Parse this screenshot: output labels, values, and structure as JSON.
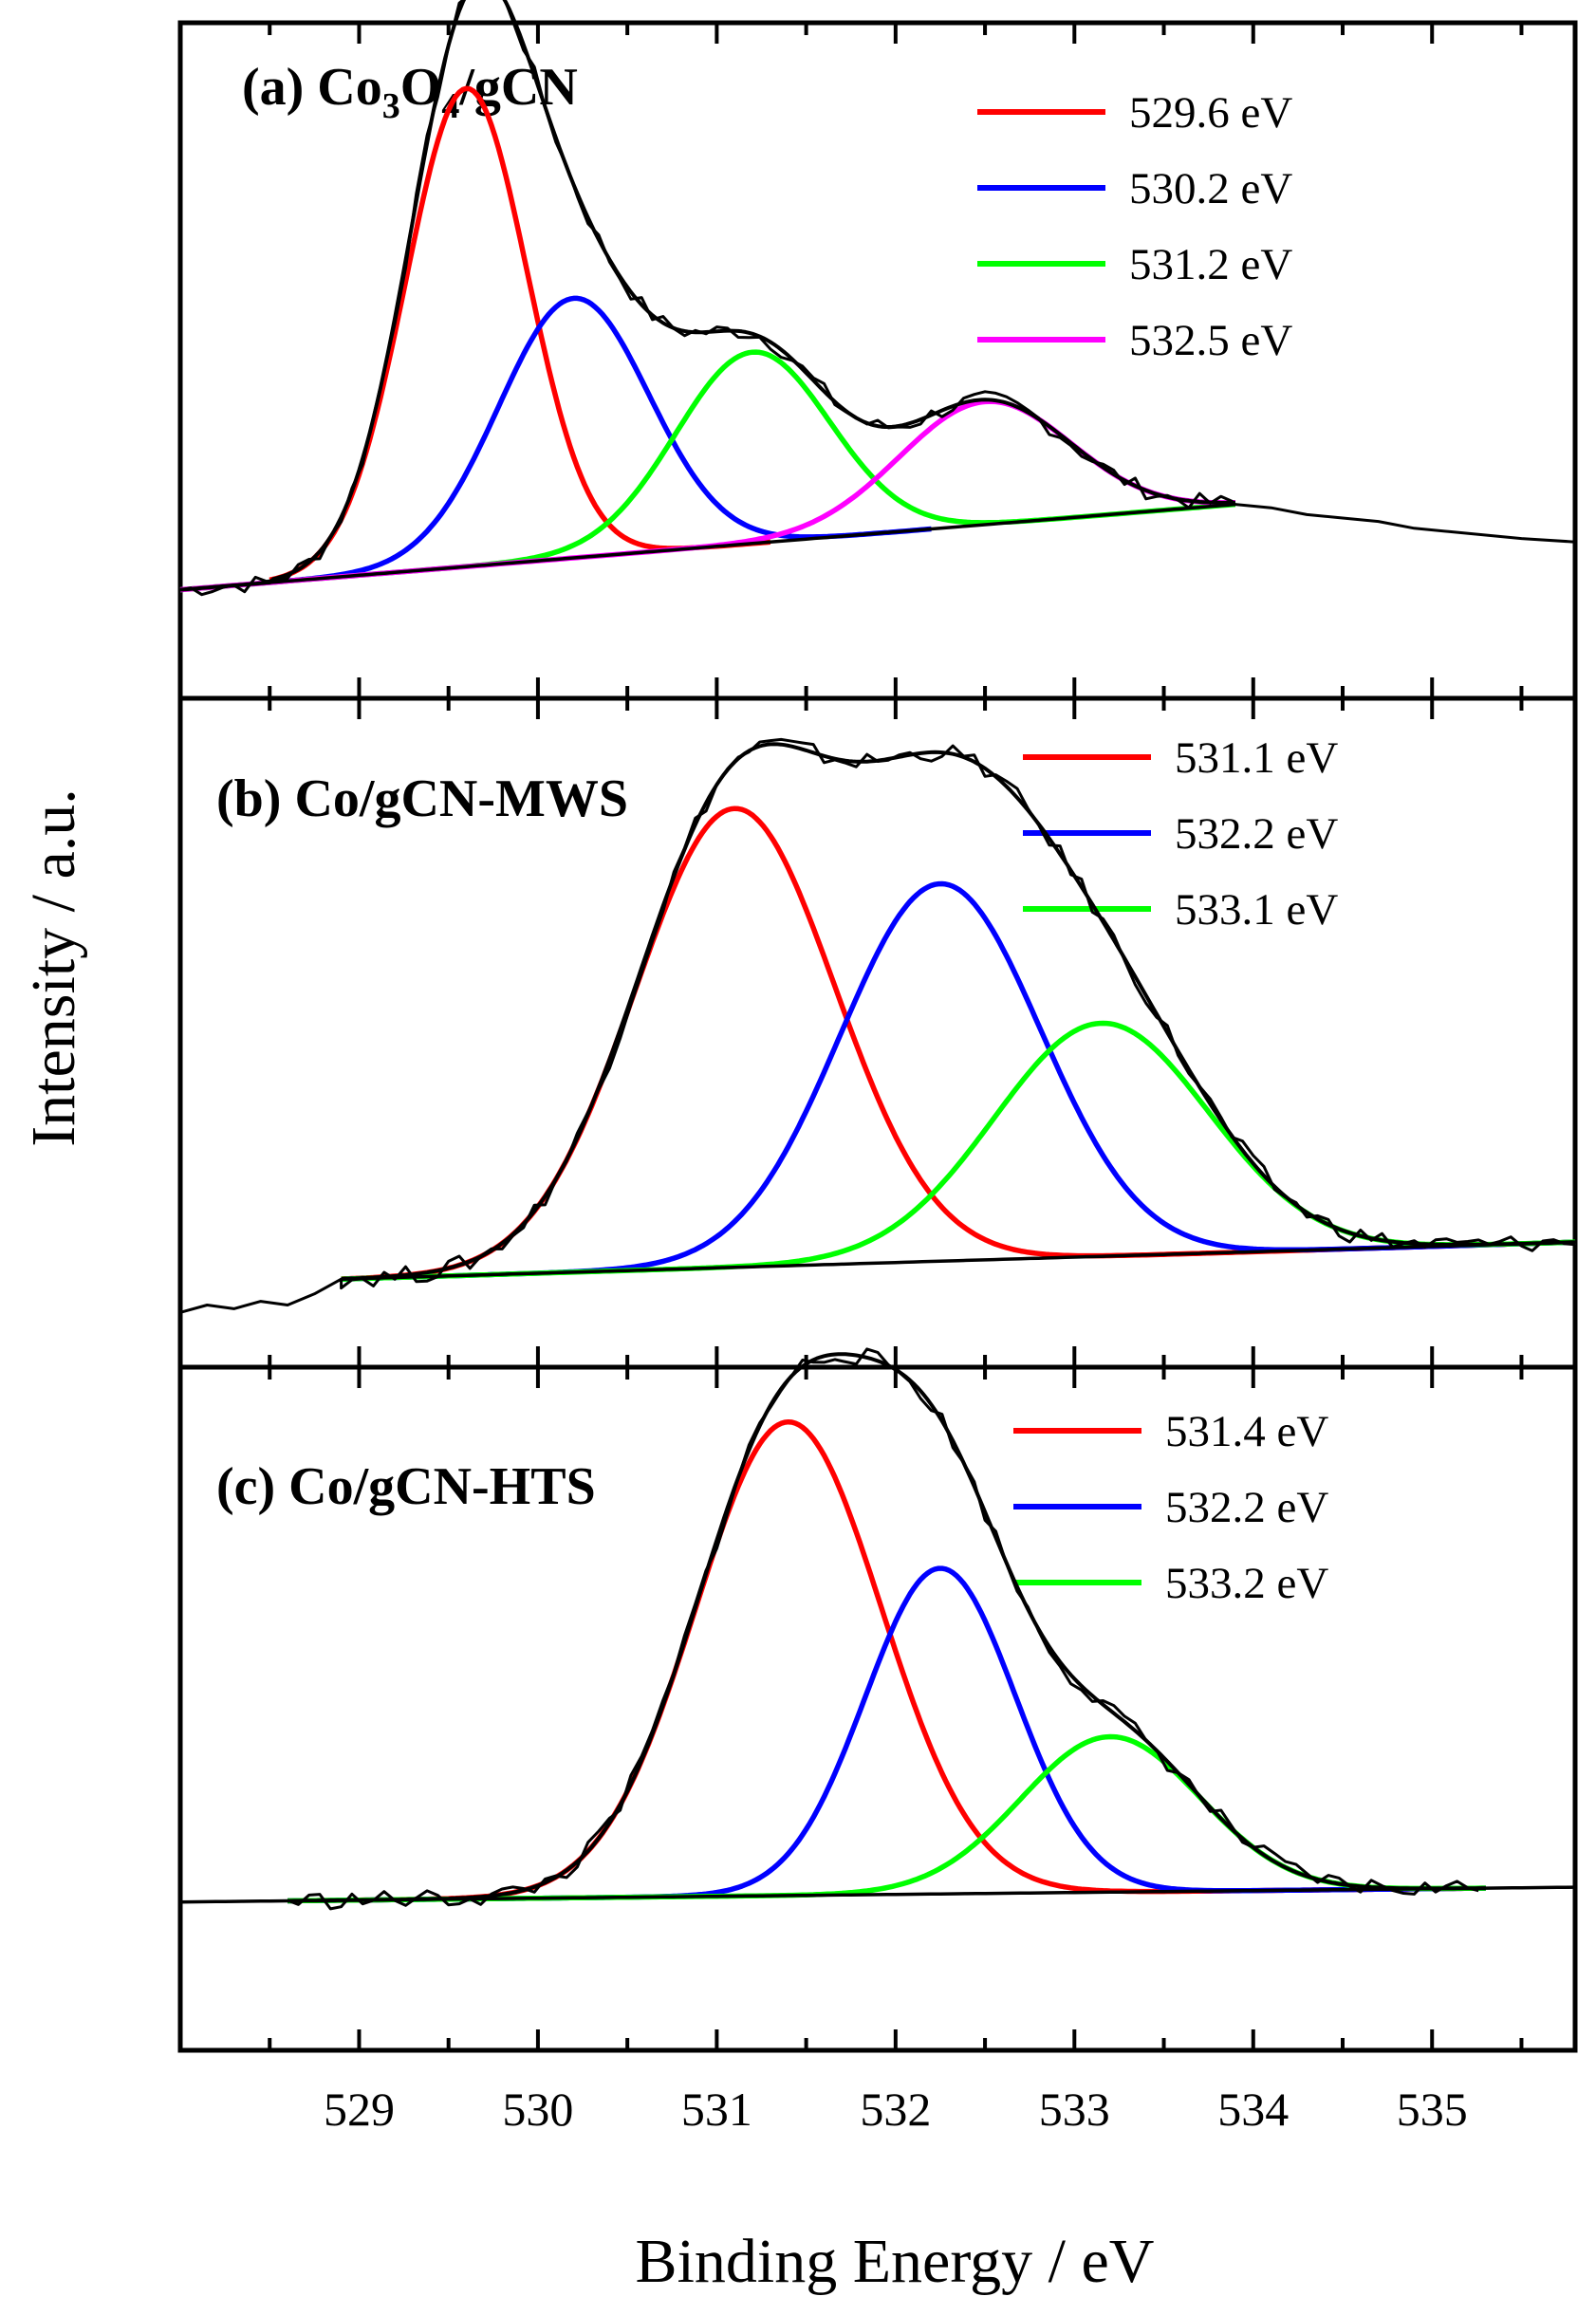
{
  "figure": {
    "ylabel": "Intensity / a.u.",
    "xlabel": "Binding Energy / eV",
    "xlim": [
      528,
      535.8
    ],
    "xticks": [
      "529",
      "530",
      "531",
      "532",
      "533",
      "534",
      "535"
    ],
    "xtick_values": [
      529,
      530,
      531,
      532,
      533,
      534,
      535
    ],
    "grid": false
  },
  "chart_data": [
    {
      "type": "line",
      "id": "a",
      "title_parts": {
        "prefix": "(a) Co",
        "sub1": "3",
        "mid": "O",
        "sub2": "4",
        "suffix": "/gCN"
      },
      "xlim": [
        528,
        535.8
      ],
      "ylim": [
        0,
        1
      ],
      "xlabel": "Binding Energy / eV",
      "ylabel": "Intensity / a.u.",
      "legend_position": "top-right",
      "background": {
        "range": [
          528.0,
          533.9
        ],
        "start": 0.095,
        "end": 0.22
      },
      "experimental_tail": [
        [
          533.9,
          0.22
        ],
        [
          534.1,
          0.215
        ],
        [
          534.3,
          0.205
        ],
        [
          534.5,
          0.2
        ],
        [
          534.7,
          0.195
        ],
        [
          534.9,
          0.185
        ],
        [
          535.1,
          0.18
        ],
        [
          535.3,
          0.175
        ],
        [
          535.5,
          0.17
        ],
        [
          535.8,
          0.165
        ]
      ],
      "series": [
        {
          "name": "529.6 eV",
          "color": "#ff0000",
          "center": 529.6,
          "amplitude": 0.7,
          "width": 0.34,
          "range": [
            528.5,
            531.3
          ]
        },
        {
          "name": "530.2 eV",
          "color": "#0000ff",
          "center": 530.2,
          "amplitude": 0.38,
          "width": 0.42,
          "range": [
            528.5,
            532.2
          ]
        },
        {
          "name": "531.2 eV",
          "color": "#00ff00",
          "center": 531.2,
          "amplitude": 0.28,
          "width": 0.43,
          "range": [
            528.0,
            533.9
          ]
        },
        {
          "name": "532.5 eV",
          "color": "#ff00ff",
          "center": 532.5,
          "amplitude": 0.18,
          "width": 0.48,
          "range": [
            528.0,
            533.9
          ]
        }
      ]
    },
    {
      "type": "line",
      "id": "b",
      "title": "(b) Co/gCN-MWS",
      "xlim": [
        528,
        535.8
      ],
      "ylim": [
        0,
        1
      ],
      "xlabel": "Binding Energy / eV",
      "ylabel": "Intensity / a.u.",
      "legend_position": "top-right",
      "background": {
        "range": [
          528.9,
          535.8
        ],
        "start": 0.06,
        "end": 0.11
      },
      "experimental_head": [
        [
          528.0,
          0.015
        ],
        [
          528.15,
          0.025
        ],
        [
          528.3,
          0.02
        ],
        [
          528.45,
          0.03
        ],
        [
          528.6,
          0.025
        ],
        [
          528.75,
          0.04
        ],
        [
          528.9,
          0.06
        ]
      ],
      "series": [
        {
          "name": "531.1 eV",
          "color": "#ff0000",
          "center": 531.1,
          "amplitude": 0.62,
          "width": 0.56,
          "range": [
            528.9,
            535.8
          ]
        },
        {
          "name": "532.2 eV",
          "color": "#0000ff",
          "center": 532.25,
          "amplitude": 0.51,
          "width": 0.56,
          "range": [
            528.9,
            535.8
          ]
        },
        {
          "name": "533.1 eV",
          "color": "#00ff00",
          "center": 533.15,
          "amplitude": 0.315,
          "width": 0.6,
          "range": [
            528.9,
            535.8
          ]
        }
      ]
    },
    {
      "type": "line",
      "id": "c",
      "title": "(c) Co/gCN-HTS",
      "xlim": [
        528,
        535.8
      ],
      "ylim": [
        0,
        1
      ],
      "xlabel": "Binding Energy / eV",
      "ylabel": "Intensity / a.u.",
      "legend_position": "top-right",
      "background": {
        "range": [
          528.0,
          535.8
        ],
        "start": 0.135,
        "end": 0.155
      },
      "series": [
        {
          "name": "531.4 eV",
          "color": "#ff0000",
          "center": 531.4,
          "amplitude": 0.64,
          "width": 0.52,
          "range": [
            528.6,
            535.3
          ]
        },
        {
          "name": "532.2 eV",
          "color": "#0000ff",
          "center": 532.25,
          "amplitude": 0.44,
          "width": 0.42,
          "range": [
            528.6,
            535.3
          ]
        },
        {
          "name": "533.2 eV",
          "color": "#00ff00",
          "center": 533.2,
          "amplitude": 0.21,
          "width": 0.5,
          "range": [
            528.6,
            535.3
          ]
        }
      ]
    }
  ]
}
